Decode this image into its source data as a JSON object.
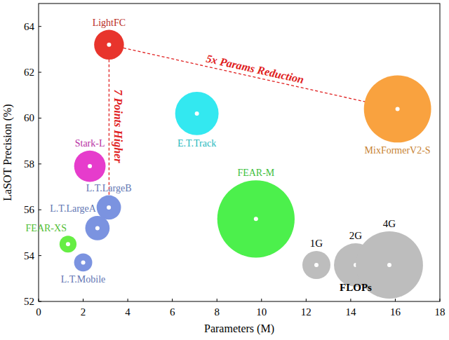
{
  "chart_data": {
    "type": "scatter",
    "x_label": "Parameters (M)",
    "y_label": "LaSOT Precision (%)",
    "xlim": [
      0,
      18
    ],
    "xticks": [
      0,
      2,
      4,
      6,
      8,
      10,
      12,
      14,
      16,
      18
    ],
    "ylim": [
      52,
      65
    ],
    "yticks": [
      52,
      54,
      56,
      58,
      60,
      62,
      64
    ],
    "grid": false,
    "series": [
      {
        "name": "LightFC",
        "color": "#e8342c",
        "x": [
          3.16
        ],
        "values": [
          63.2
        ],
        "size": [
          1.1
        ]
      },
      {
        "name": "E.T.Track",
        "color": "#33e8f0",
        "x": [
          7.1
        ],
        "values": [
          60.2
        ],
        "size": [
          2.0
        ]
      },
      {
        "name": "MixFormerV2-S",
        "color": "#f9a23f",
        "x": [
          16.1
        ],
        "values": [
          60.4
        ],
        "size": [
          4.0
        ]
      },
      {
        "name": "Stark-L",
        "color": "#e63ccc",
        "x": [
          2.3
        ],
        "values": [
          57.9
        ],
        "size": [
          1.2
        ]
      },
      {
        "name": "FEAR-M",
        "color": "#4cf04c",
        "x": [
          9.75
        ],
        "values": [
          55.6
        ],
        "size": [
          5.0
        ]
      },
      {
        "name": "L.T.LargeB",
        "color": "#7b93e0",
        "x": [
          3.15
        ],
        "values": [
          56.1
        ],
        "size": [
          0.8
        ]
      },
      {
        "name": "L.T.LargeA",
        "color": "#7b93e0",
        "x": [
          2.64
        ],
        "values": [
          55.2
        ],
        "size": [
          0.8
        ]
      },
      {
        "name": "L.T.Mobile",
        "color": "#7b93e0",
        "x": [
          2.0
        ],
        "values": [
          53.7
        ],
        "size": [
          0.5
        ]
      },
      {
        "name": "FEAR-XS",
        "color": "#66ee44",
        "x": [
          1.32
        ],
        "values": [
          54.5
        ],
        "size": [
          0.45
        ]
      }
    ],
    "size_legend": {
      "title": "FLOPs",
      "color": "#bdbdbd",
      "items": [
        {
          "label": "1G",
          "size": 1
        },
        {
          "label": "2G",
          "size": 2
        },
        {
          "label": "4G",
          "size": 4
        }
      ]
    },
    "annotations": [
      {
        "text": "5x Params Reduction",
        "from": "LightFC",
        "to": "MixFormerV2-S",
        "color": "#e02020"
      },
      {
        "text": "7 Points Higher",
        "from": "LightFC",
        "to": "L.T.LargeB",
        "color": "#e02020"
      }
    ]
  }
}
